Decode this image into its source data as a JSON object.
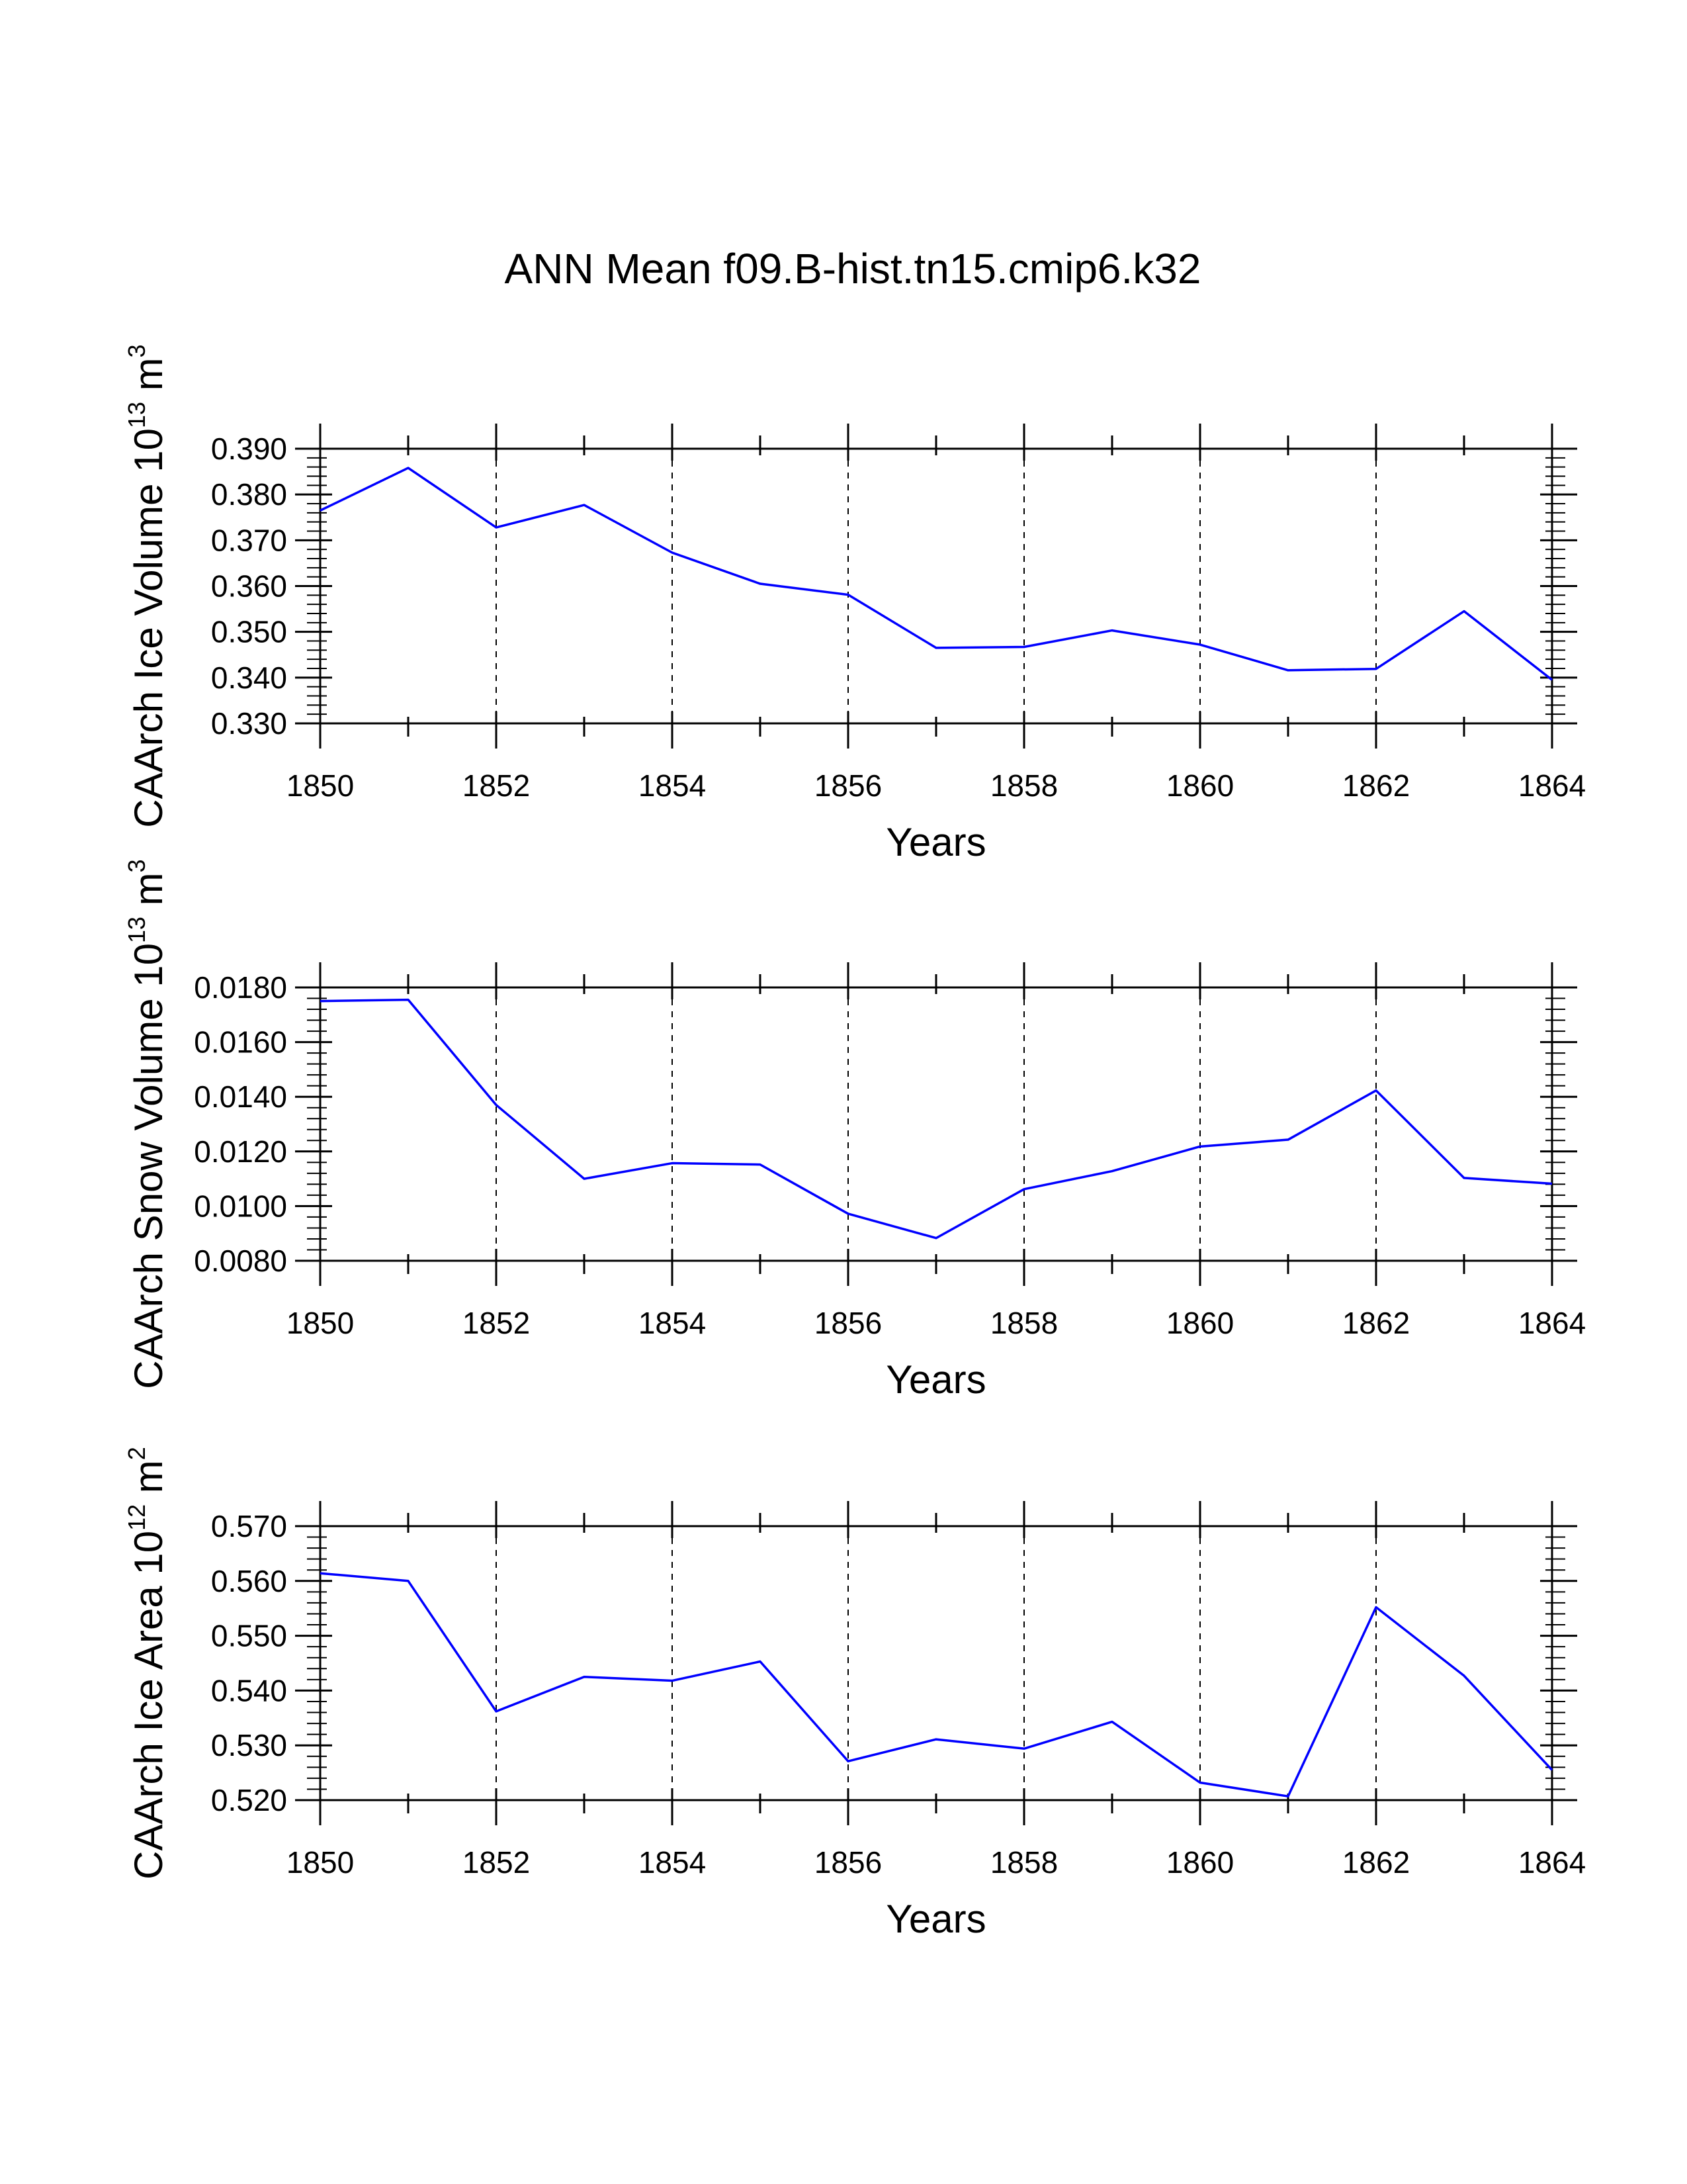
{
  "chart_data": [
    {
      "type": "line",
      "title": "ANN Mean f09.B-hist.tn15.cmip6.k32",
      "xlabel": "Years",
      "ylabel": "CAArch Ice Volume 10",
      "ylabel_exp": "13",
      "ylabel_unit": " m",
      "ylabel_unit_exp": "3",
      "xlim": [
        1850,
        1864
      ],
      "ylim": [
        0.33,
        0.39
      ],
      "x_ticks": [
        "1850",
        "1852",
        "1854",
        "1856",
        "1858",
        "1860",
        "1862",
        "1864"
      ],
      "y_ticks": [
        "0.330",
        "0.340",
        "0.350",
        "0.360",
        "0.370",
        "0.380",
        "0.390"
      ],
      "line_color": "#0000ff",
      "grid": "vertical dashed at labeled years",
      "series": [
        {
          "name": "CAArch Ice Volume",
          "x": [
            1850,
            1851,
            1852,
            1853,
            1854,
            1855,
            1856,
            1857,
            1858,
            1859,
            1860,
            1861,
            1862,
            1863,
            1864
          ],
          "values": [
            0.3765,
            0.3858,
            0.3728,
            0.3777,
            0.3673,
            0.3605,
            0.3581,
            0.3465,
            0.3467,
            0.3503,
            0.3472,
            0.3416,
            0.3419,
            0.3545,
            0.3395
          ]
        }
      ]
    },
    {
      "type": "line",
      "xlabel": "Years",
      "ylabel": "CAArch Snow Volume 10",
      "ylabel_exp": "13",
      "ylabel_unit": " m",
      "ylabel_unit_exp": "3",
      "xlim": [
        1850,
        1864
      ],
      "ylim": [
        0.008,
        0.018
      ],
      "x_ticks": [
        "1850",
        "1852",
        "1854",
        "1856",
        "1858",
        "1860",
        "1862",
        "1864"
      ],
      "y_ticks": [
        "0.0080",
        "0.0100",
        "0.0120",
        "0.0140",
        "0.0160",
        "0.0180"
      ],
      "line_color": "#0000ff",
      "grid": "vertical dashed at labeled years",
      "series": [
        {
          "name": "CAArch Snow Volume",
          "x": [
            1850,
            1851,
            1852,
            1853,
            1854,
            1855,
            1856,
            1857,
            1858,
            1859,
            1860,
            1861,
            1862,
            1863,
            1864
          ],
          "values": [
            0.0175,
            0.01755,
            0.0137,
            0.011,
            0.01157,
            0.01152,
            0.00972,
            0.00883,
            0.01062,
            0.01128,
            0.01218,
            0.01243,
            0.01423,
            0.01103,
            0.01082
          ]
        }
      ]
    },
    {
      "type": "line",
      "xlabel": "Years",
      "ylabel": "CAArch Ice Area 10",
      "ylabel_exp": "12",
      "ylabel_unit": " m",
      "ylabel_unit_exp": "2",
      "xlim": [
        1850,
        1864
      ],
      "ylim": [
        0.52,
        0.57
      ],
      "x_ticks": [
        "1850",
        "1852",
        "1854",
        "1856",
        "1858",
        "1860",
        "1862",
        "1864"
      ],
      "y_ticks": [
        "0.520",
        "0.530",
        "0.540",
        "0.550",
        "0.560",
        "0.570"
      ],
      "line_color": "#0000ff",
      "grid": "vertical dashed at labeled years",
      "series": [
        {
          "name": "CAArch Ice Area",
          "x": [
            1850,
            1851,
            1852,
            1853,
            1854,
            1855,
            1856,
            1857,
            1858,
            1859,
            1860,
            1861,
            1862,
            1863,
            1864
          ],
          "values": [
            0.5614,
            0.56,
            0.5362,
            0.5425,
            0.5418,
            0.5453,
            0.5271,
            0.5311,
            0.5294,
            0.5343,
            0.5232,
            0.5207,
            0.5552,
            0.5427,
            0.5255
          ]
        }
      ]
    }
  ]
}
